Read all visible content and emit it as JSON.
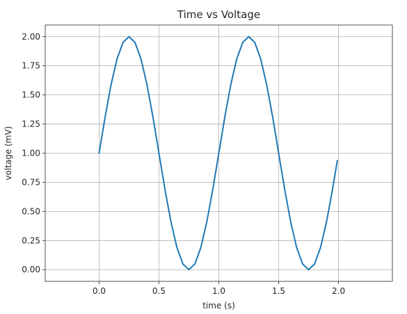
{
  "chart_data": {
    "type": "line",
    "title": "Time vs Voltage",
    "xlabel": "time (s)",
    "ylabel": "voltage (mV)",
    "xlim": [
      -0.45,
      2.45
    ],
    "ylim": [
      -0.1,
      2.1
    ],
    "xticks": [
      0.0,
      0.5,
      1.0,
      1.5,
      2.0
    ],
    "xtick_labels": [
      "0.0",
      "0.5",
      "1.0",
      "1.5",
      "2.0"
    ],
    "yticks": [
      0.0,
      0.25,
      0.5,
      0.75,
      1.0,
      1.25,
      1.5,
      1.75,
      2.0
    ],
    "ytick_labels": [
      "0.00",
      "0.25",
      "0.50",
      "0.75",
      "1.00",
      "1.25",
      "1.50",
      "1.75",
      "2.00"
    ],
    "grid": true,
    "series": [
      {
        "color": "#1f77b4",
        "x": [
          0.0,
          0.05,
          0.1,
          0.15,
          0.2,
          0.25,
          0.3,
          0.35,
          0.4,
          0.45,
          0.5,
          0.55,
          0.6,
          0.65,
          0.7,
          0.75,
          0.8,
          0.85,
          0.9,
          0.95,
          1.0,
          1.05,
          1.1,
          1.15,
          1.2,
          1.25,
          1.3,
          1.35,
          1.4,
          1.45,
          1.5,
          1.55,
          1.6,
          1.65,
          1.7,
          1.75,
          1.8,
          1.85,
          1.9,
          1.95,
          1.99
        ],
        "y": [
          1.0,
          1.309,
          1.588,
          1.809,
          1.951,
          2.0,
          1.951,
          1.809,
          1.588,
          1.309,
          1.0,
          0.691,
          0.412,
          0.191,
          0.049,
          0.0,
          0.049,
          0.191,
          0.412,
          0.691,
          1.0,
          1.309,
          1.588,
          1.809,
          1.951,
          2.0,
          1.951,
          1.809,
          1.588,
          1.309,
          1.0,
          0.691,
          0.412,
          0.191,
          0.049,
          0.0,
          0.049,
          0.191,
          0.412,
          0.691,
          0.937
        ]
      }
    ]
  }
}
